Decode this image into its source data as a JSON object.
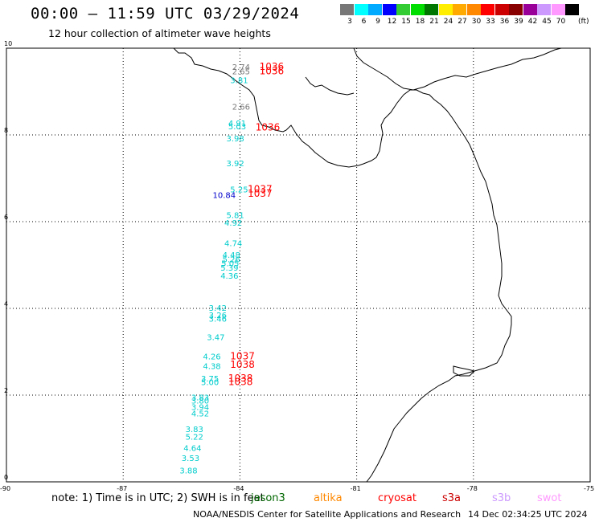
{
  "header": {
    "title": "00:00 – 11:59 UTC 03/29/2024",
    "subtitle": "12 hour collection of altimeter wave heights"
  },
  "legend": {
    "unit": "(ft)",
    "swatches": [
      {
        "color": "#777777",
        "label": "3"
      },
      {
        "color": "#00ffff",
        "label": "6"
      },
      {
        "color": "#00aaff",
        "label": "9"
      },
      {
        "color": "#0000ff",
        "label": "12"
      },
      {
        "color": "#33cc33",
        "label": "15"
      },
      {
        "color": "#00dd00",
        "label": "18"
      },
      {
        "color": "#007700",
        "label": "21"
      },
      {
        "color": "#ffee00",
        "label": "24"
      },
      {
        "color": "#ffaa00",
        "label": "27"
      },
      {
        "color": "#ff8800",
        "label": "30"
      },
      {
        "color": "#ff0000",
        "label": "33"
      },
      {
        "color": "#cc0000",
        "label": "36"
      },
      {
        "color": "#880000",
        "label": "39"
      },
      {
        "color": "#990099",
        "label": "42"
      },
      {
        "color": "#cc99ff",
        "label": "45"
      },
      {
        "color": "#ff99ff",
        "label": "70"
      },
      {
        "color": "#000000",
        "label": ""
      }
    ]
  },
  "map": {
    "lon_ticks": [
      "-90",
      "-87",
      "-84",
      "-81",
      "-78",
      "-75"
    ],
    "lat_ticks": [
      "10",
      "8",
      "6",
      "4",
      "2",
      "0"
    ],
    "lon_values": [
      -90,
      -87,
      -84,
      -81,
      -78,
      -75
    ],
    "lat_values": [
      10,
      8,
      6,
      4,
      2,
      0
    ],
    "lon_range": [
      -90,
      -75
    ],
    "lat_range": [
      0,
      10
    ],
    "grid": true,
    "wave_heights": [
      {
        "label": "2.74",
        "lon": -84.2,
        "lat": 9.57,
        "color": "#777777"
      },
      {
        "label": "2.65",
        "lon": -84.2,
        "lat": 9.47,
        "color": "#777777"
      },
      {
        "label": "3.81",
        "lon": -84.25,
        "lat": 9.27,
        "color": "#00cccc"
      },
      {
        "label": "2.66",
        "lon": -84.2,
        "lat": 8.66,
        "color": "#777777"
      },
      {
        "label": "4.91",
        "lon": -84.3,
        "lat": 8.28,
        "color": "#00cccc"
      },
      {
        "label": "5.03",
        "lon": -84.3,
        "lat": 8.2,
        "color": "#00cccc"
      },
      {
        "label": "3.98",
        "lon": -84.35,
        "lat": 7.93,
        "color": "#00cccc"
      },
      {
        "label": "3.92",
        "lon": -84.35,
        "lat": 7.35,
        "color": "#00cccc"
      },
      {
        "label": "5.25",
        "lon": -84.25,
        "lat": 6.75,
        "color": "#00cccc"
      },
      {
        "label": "10.84",
        "lon": -84.7,
        "lat": 6.62,
        "color": "#0000cc"
      },
      {
        "label": "5.81",
        "lon": -84.35,
        "lat": 6.16,
        "color": "#00cccc"
      },
      {
        "label": "4.92",
        "lon": -84.4,
        "lat": 5.98,
        "color": "#00cccc"
      },
      {
        "label": "4.74",
        "lon": -84.4,
        "lat": 5.51,
        "color": "#00cccc"
      },
      {
        "label": "4.48",
        "lon": -84.45,
        "lat": 5.24,
        "color": "#00cccc"
      },
      {
        "label": "5.26",
        "lon": -84.45,
        "lat": 5.14,
        "color": "#00cccc"
      },
      {
        "label": "5.05",
        "lon": -84.48,
        "lat": 5.05,
        "color": "#00cccc"
      },
      {
        "label": "5.39",
        "lon": -84.5,
        "lat": 4.94,
        "color": "#00cccc"
      },
      {
        "label": "4.36",
        "lon": -84.5,
        "lat": 4.76,
        "color": "#00cccc"
      },
      {
        "label": "3.42",
        "lon": -84.8,
        "lat": 4.02,
        "color": "#00cccc"
      },
      {
        "label": "3.26",
        "lon": -84.8,
        "lat": 3.85,
        "color": "#00cccc"
      },
      {
        "label": "3.46",
        "lon": -84.8,
        "lat": 3.77,
        "color": "#00cccc"
      },
      {
        "label": "3.47",
        "lon": -84.85,
        "lat": 3.34,
        "color": "#00cccc"
      },
      {
        "label": "4.26",
        "lon": -84.95,
        "lat": 2.9,
        "color": "#00cccc"
      },
      {
        "label": "4.38",
        "lon": -84.95,
        "lat": 2.68,
        "color": "#00cccc"
      },
      {
        "label": "3.75",
        "lon": -85.0,
        "lat": 2.39,
        "color": "#00cccc"
      },
      {
        "label": "5.00",
        "lon": -85.0,
        "lat": 2.31,
        "color": "#00cccc"
      },
      {
        "label": "3.83",
        "lon": -85.25,
        "lat": 1.95,
        "color": "#00cccc"
      },
      {
        "label": "3.80",
        "lon": -85.25,
        "lat": 1.88,
        "color": "#00cccc"
      },
      {
        "label": "3.94",
        "lon": -85.25,
        "lat": 1.73,
        "color": "#00cccc"
      },
      {
        "label": "4.52",
        "lon": -85.25,
        "lat": 1.58,
        "color": "#00cccc"
      },
      {
        "label": "3.83",
        "lon": -85.4,
        "lat": 1.22,
        "color": "#00cccc"
      },
      {
        "label": "5.22",
        "lon": -85.4,
        "lat": 1.05,
        "color": "#00cccc"
      },
      {
        "label": "4.64",
        "lon": -85.45,
        "lat": 0.79,
        "color": "#00cccc"
      },
      {
        "label": "3.53",
        "lon": -85.5,
        "lat": 0.56,
        "color": "#00cccc"
      },
      {
        "label": "3.88",
        "lon": -85.55,
        "lat": 0.27,
        "color": "#00cccc"
      }
    ],
    "pressure_labels": [
      {
        "label": "1036",
        "lon": -83.5,
        "lat": 9.57,
        "color": "#ff0000"
      },
      {
        "label": "1036",
        "lon": -83.5,
        "lat": 9.47,
        "color": "#ff0000"
      },
      {
        "label": "1036",
        "lon": -83.6,
        "lat": 8.18,
        "color": "#ff0000"
      },
      {
        "label": "1037",
        "lon": -83.8,
        "lat": 6.75,
        "color": "#ff0000"
      },
      {
        "label": "1037",
        "lon": -83.8,
        "lat": 6.65,
        "color": "#ff0000"
      },
      {
        "label": "1037",
        "lon": -84.25,
        "lat": 2.9,
        "color": "#ff0000"
      },
      {
        "label": "1038",
        "lon": -84.25,
        "lat": 2.7,
        "color": "#ff0000"
      },
      {
        "label": "1038",
        "lon": -84.3,
        "lat": 2.39,
        "color": "#ff0000"
      },
      {
        "label": "1038",
        "lon": -84.3,
        "lat": 2.31,
        "color": "#ff0000"
      }
    ]
  },
  "footer": {
    "note": "note: 1) Time is in UTC; 2) SWH is in feet",
    "satellites": [
      {
        "name": "jason3",
        "color": "#006600"
      },
      {
        "name": "altika",
        "color": "#ff8800"
      },
      {
        "name": "cryosat",
        "color": "#ff0000"
      },
      {
        "name": "s3a",
        "color": "#cc0000"
      },
      {
        "name": "s3b",
        "color": "#cc99ff"
      },
      {
        "name": "swot",
        "color": "#ff99ff"
      }
    ],
    "credit": "NOAA/NESDIS Center for Satellite Applications and Research",
    "timestamp": "14 Dec 02:34:25 UTC 2024"
  }
}
